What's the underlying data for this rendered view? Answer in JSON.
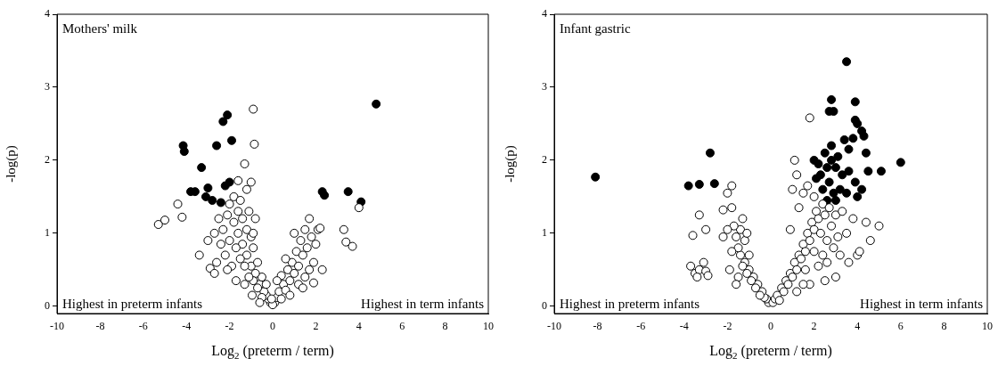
{
  "chart_data": [
    {
      "type": "scatter",
      "xlabel": "Log$_{2}$ (preterm / term)",
      "ylabel": "-log(p)",
      "xlim": [
        -10,
        10
      ],
      "xticks": [
        -10,
        -8,
        -6,
        -4,
        -2,
        0,
        2,
        4,
        6,
        8,
        10
      ],
      "ylim": [
        -0.1,
        4
      ],
      "yticks": [
        0,
        1,
        2,
        3,
        4
      ],
      "marker": "circle",
      "annotations": [
        "Mothers' milk",
        "Highest in preterm infants",
        "Highest in term infants"
      ],
      "series": [
        {
          "color": "#ffffff",
          "x": [
            -0.1,
            -0.2,
            -0.3,
            -0.4,
            -0.5,
            -0.6,
            -0.7,
            -0.5,
            -0.8,
            -0.9,
            -1.0,
            -0.7,
            -1.1,
            -1.2,
            -0.9,
            -1.3,
            -1.4,
            -1.0,
            -1.5,
            -1.6,
            -1.2,
            -1.7,
            -1.8,
            -1.4,
            -2.0,
            -2.1,
            -1.6,
            -2.3,
            -2.2,
            -1.9,
            -2.5,
            -2.4,
            -2.7,
            -2.6,
            -1.1,
            -0.8,
            -0.9,
            -1.8,
            -1.5,
            -1.2,
            -1.0,
            -2.0,
            -0.95,
            -0.6,
            -0.3,
            -1.3,
            -2.1,
            -1.7,
            -0.9,
            -0.85,
            -1.3,
            -5.3,
            -5.0,
            -4.2,
            -4.4,
            -3.4,
            -2.9,
            -2.7,
            -1.6,
            -3.0,
            0.1,
            0.2,
            0.3,
            0.4,
            0.5,
            0.6,
            0.4,
            0.7,
            0.8,
            0.9,
            0.6,
            1.0,
            1.1,
            1.2,
            1.3,
            1.0,
            1.4,
            1.5,
            1.6,
            1.7,
            1.8,
            1.9,
            2.0,
            2.1,
            2.2,
            1.5,
            1.2,
            0.8,
            1.7,
            2.3,
            3.3,
            3.4,
            3.7,
            4.0,
            1.9,
            1.4,
            0.2,
            0.0,
            -0.05
          ],
          "values": [
            0.05,
            0.1,
            0.15,
            0.2,
            0.12,
            0.3,
            0.25,
            0.4,
            0.45,
            0.35,
            0.55,
            0.6,
            0.4,
            0.7,
            0.8,
            0.55,
            0.85,
            0.95,
            0.65,
            1.0,
            1.05,
            0.8,
            1.15,
            1.2,
            0.9,
            1.25,
            1.3,
            1.05,
            0.7,
            0.55,
            1.2,
            0.85,
            1.0,
            0.6,
            1.3,
            1.2,
            1.0,
            1.5,
            1.45,
            1.6,
            1.7,
            1.4,
            0.15,
            0.05,
            0.3,
            0.3,
            0.5,
            0.35,
            2.7,
            2.22,
            1.95,
            1.12,
            1.18,
            1.22,
            1.4,
            0.7,
            0.52,
            0.45,
            1.72,
            0.9,
            0.05,
            0.12,
            0.2,
            0.1,
            0.3,
            0.22,
            0.42,
            0.5,
            0.35,
            0.6,
            0.65,
            0.45,
            0.75,
            0.55,
            0.9,
            1.0,
            0.7,
            1.05,
            0.8,
            1.2,
            0.95,
            0.6,
            0.85,
            1.05,
            1.07,
            0.4,
            0.3,
            0.15,
            0.5,
            0.5,
            1.05,
            0.88,
            0.82,
            1.35,
            0.32,
            0.25,
            0.35,
            0.02,
            0.1
          ]
        },
        {
          "color": "#000000",
          "x": [
            -4.15,
            -4.1,
            -2.3,
            -2.1,
            -1.9,
            -2.6,
            -3.3,
            -3.8,
            -3.6,
            -3.0,
            -3.1,
            -2.8,
            -2.2,
            -2.0,
            -2.4,
            2.3,
            2.4,
            3.5,
            4.1,
            4.8
          ],
          "values": [
            2.2,
            2.12,
            2.53,
            2.62,
            2.27,
            2.2,
            1.9,
            1.57,
            1.57,
            1.62,
            1.5,
            1.45,
            1.65,
            1.7,
            1.42,
            1.57,
            1.52,
            1.57,
            1.43,
            2.77
          ]
        }
      ]
    },
    {
      "type": "scatter",
      "xlabel": "Log$_{2}$ (preterm / term)",
      "ylabel": "-log(p)",
      "xlim": [
        -10,
        10
      ],
      "xticks": [
        -10,
        -8,
        -6,
        -4,
        -2,
        0,
        2,
        4,
        6,
        8,
        10
      ],
      "ylim": [
        -0.1,
        4
      ],
      "yticks": [
        0,
        1,
        2,
        3,
        4
      ],
      "marker": "circle",
      "annotations": [
        "Infant gastric",
        "Highest in preterm infants",
        "Highest in term infants"
      ],
      "series": [
        {
          "color": "#ffffff",
          "x": [
            -0.1,
            -0.2,
            -0.3,
            -0.4,
            -0.5,
            -0.6,
            -0.7,
            -0.8,
            -0.9,
            -1.0,
            -1.1,
            -1.2,
            -1.3,
            -1.4,
            -1.5,
            -1.2,
            -1.6,
            -1.4,
            -1.7,
            -1.3,
            -1.8,
            -1.5,
            -1.6,
            -1.9,
            -1.1,
            -1.0,
            -2.0,
            -2.2,
            -1.8,
            -2.2,
            -2.0,
            -1.8,
            -3.0,
            -3.6,
            -3.3,
            -3.5,
            -3.3,
            -3.7,
            -3.1,
            -3.4,
            -3.0,
            -2.9,
            0.1,
            0.2,
            0.3,
            0.4,
            0.5,
            0.6,
            0.7,
            0.8,
            0.9,
            1.0,
            1.1,
            1.2,
            1.3,
            1.4,
            1.5,
            1.6,
            1.7,
            1.8,
            1.9,
            2.0,
            2.1,
            2.2,
            2.3,
            2.4,
            2.5,
            2.6,
            2.7,
            2.8,
            2.9,
            3.0,
            3.1,
            3.2,
            3.3,
            3.5,
            3.6,
            3.8,
            4.0,
            4.1,
            4.4,
            4.6,
            5.0,
            3.0,
            2.5,
            2.2,
            1.8,
            1.5,
            1.2,
            1.0,
            1.2,
            1.1,
            1.8,
            1.5,
            2.0,
            1.7,
            1.3,
            0.9,
            2.6,
            2.4,
            2.0,
            1.6
          ],
          "values": [
            0.05,
            0.1,
            0.12,
            0.2,
            0.15,
            0.3,
            0.25,
            0.4,
            0.35,
            0.5,
            0.45,
            0.6,
            0.55,
            0.7,
            0.8,
            0.9,
            0.95,
            1.05,
            1.1,
            1.2,
            0.75,
            0.4,
            0.3,
            0.5,
            1.0,
            0.7,
            1.05,
            0.95,
            1.35,
            1.32,
            1.55,
            1.65,
            1.05,
            0.97,
            1.25,
            0.45,
            0.5,
            0.55,
            0.6,
            0.4,
            0.48,
            0.42,
            0.05,
            0.1,
            0.15,
            0.08,
            0.25,
            0.2,
            0.35,
            0.3,
            0.45,
            0.4,
            0.6,
            0.5,
            0.7,
            0.65,
            0.85,
            0.75,
            1.0,
            0.9,
            1.15,
            1.05,
            1.3,
            1.2,
            1.0,
            1.4,
            1.25,
            0.9,
            1.35,
            1.1,
            0.8,
            1.25,
            0.95,
            0.7,
            1.3,
            1.0,
            0.6,
            1.2,
            0.7,
            0.75,
            1.15,
            0.9,
            1.1,
            0.4,
            0.35,
            0.55,
            0.3,
            0.3,
            0.2,
            1.6,
            1.8,
            2.0,
            2.58,
            1.55,
            1.5,
            1.65,
            1.35,
            1.05,
            0.6,
            0.7,
            0.75,
            0.5
          ]
        },
        {
          "color": "#000000",
          "x": [
            -8.1,
            -3.8,
            -3.3,
            -2.8,
            -2.6,
            3.5,
            2.8,
            2.7,
            2.9,
            3.9,
            3.9,
            4.0,
            4.2,
            4.3,
            3.8,
            3.4,
            3.6,
            4.4,
            2.8,
            2.2,
            2.0,
            2.3,
            2.6,
            3.0,
            3.3,
            3.6,
            2.4,
            2.7,
            2.9,
            3.2,
            3.5,
            3.9,
            4.2,
            4.5,
            4.0,
            3.0,
            2.6,
            5.1,
            6.0,
            2.1,
            2.5,
            2.8,
            3.1
          ],
          "values": [
            1.77,
            1.65,
            1.67,
            2.1,
            1.68,
            3.35,
            2.83,
            2.67,
            2.67,
            2.8,
            2.55,
            2.5,
            2.4,
            2.33,
            2.3,
            2.28,
            2.15,
            2.1,
            2.2,
            1.95,
            2.0,
            1.8,
            1.9,
            1.9,
            1.8,
            1.85,
            1.6,
            1.7,
            1.55,
            1.6,
            1.55,
            1.7,
            1.6,
            1.85,
            1.5,
            1.45,
            1.45,
            1.85,
            1.97,
            1.75,
            2.1,
            2.0,
            2.05
          ]
        }
      ]
    }
  ]
}
